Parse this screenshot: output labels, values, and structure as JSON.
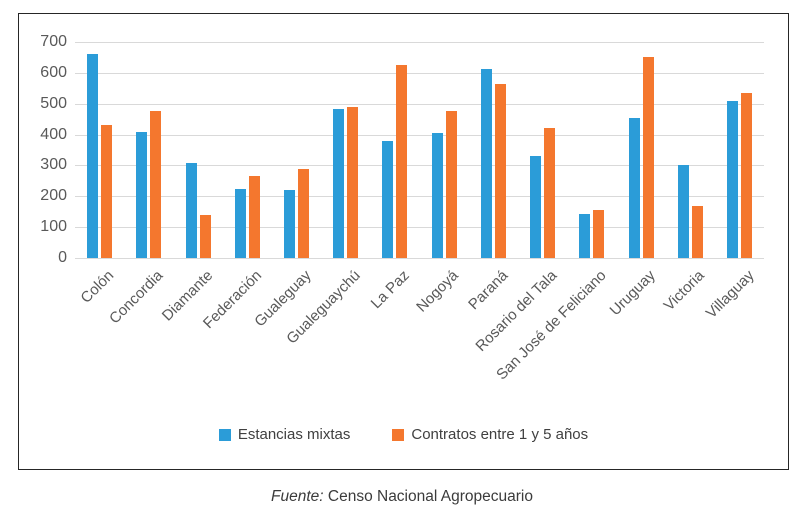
{
  "source": {
    "label": "Fuente:",
    "text": " Censo Nacional Agropecuario"
  },
  "colors": {
    "axis_text": "#595959",
    "legend_text": "#404040",
    "grid": "#d9d9d9",
    "frame_border": "#262626",
    "background": "#ffffff",
    "series_blue": "#2b9cd8",
    "series_orange": "#f4772e"
  },
  "chart_data": {
    "type": "bar",
    "title": "",
    "xlabel": "",
    "ylabel": "",
    "categories": [
      "Colón",
      "Concordia",
      "Diamante",
      "Federación",
      "Gualeguay",
      "Gualeguaychú",
      "La Paz",
      "Nogoyá",
      "Paraná",
      "Rosario del Tala",
      "San José de Feliciano",
      "Uruguay",
      "Victoria",
      "Villaguay"
    ],
    "series": [
      {
        "name": "Estancias mixtas",
        "color": "#2b9cd8",
        "values": [
          660,
          410,
          307,
          225,
          221,
          483,
          380,
          405,
          612,
          330,
          144,
          455,
          303,
          510
        ]
      },
      {
        "name": "Contratos entre 1 y 5 años",
        "color": "#f4772e",
        "values": [
          430,
          475,
          141,
          265,
          288,
          490,
          627,
          477,
          565,
          420,
          154,
          650,
          168,
          535
        ]
      }
    ],
    "ylim": [
      0,
      700
    ],
    "ytick_step": 100,
    "yticks": [
      0,
      100,
      200,
      300,
      400,
      500,
      600,
      700
    ],
    "grid": true,
    "legend_position": "bottom"
  }
}
